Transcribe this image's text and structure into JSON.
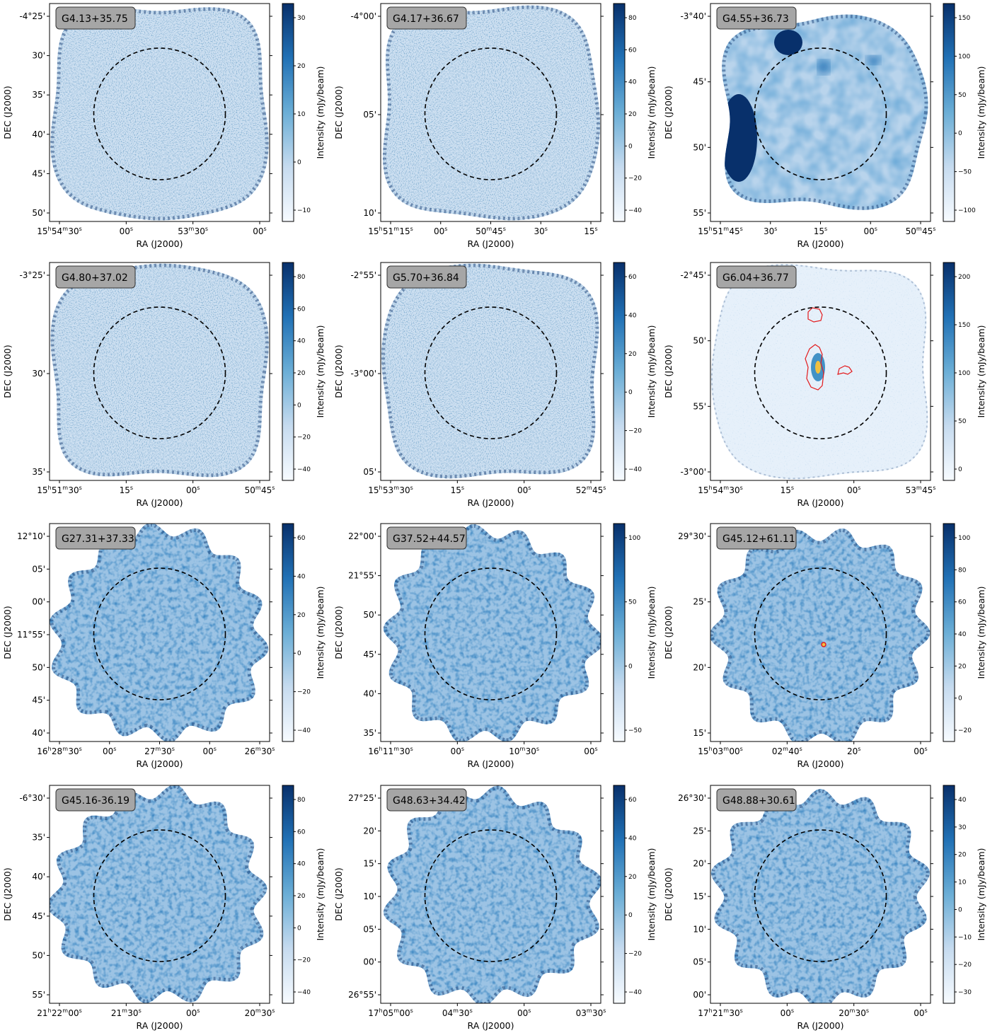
{
  "figure": {
    "panels": [
      {
        "name": "G4.13+35.75",
        "ra_ticks": [
          "15h54m30s",
          "00s",
          "53m30s",
          "00s"
        ],
        "dec_ticks": [
          "-4°25'",
          "30'",
          "35'",
          "40'",
          "45'",
          "50'"
        ],
        "cbar_ticks": [
          "30",
          "20",
          "10",
          "0",
          "−10"
        ],
        "has_contour": false,
        "style": "noise"
      },
      {
        "name": "G4.17+36.67",
        "ra_ticks": [
          "15h51m15s",
          "00s",
          "50m45s",
          "30s",
          "15s"
        ],
        "dec_ticks": [
          "-4°00'",
          "05'",
          "10'"
        ],
        "cbar_ticks": [
          "80",
          "60",
          "40",
          "20",
          "0",
          "−20",
          "−40"
        ],
        "has_contour": false,
        "style": "noise"
      },
      {
        "name": "G4.55+36.73",
        "ra_ticks": [
          "15h51m45s",
          "30s",
          "15s",
          "00s",
          "50m45s"
        ],
        "dec_ticks": [
          "-3°40'",
          "45'",
          "50'",
          "55'"
        ],
        "cbar_ticks": [
          "150",
          "100",
          "50",
          "0",
          "−50",
          "−100"
        ],
        "has_contour": false,
        "style": "smooth"
      },
      {
        "name": "G4.80+37.02",
        "ra_ticks": [
          "15h51m30s",
          "15s",
          "00s",
          "50m45s"
        ],
        "dec_ticks": [
          "-3°25'",
          "30'",
          "35'"
        ],
        "cbar_ticks": [
          "80",
          "60",
          "40",
          "20",
          "0",
          "−20",
          "−40"
        ],
        "has_contour": false,
        "style": "noise"
      },
      {
        "name": "G5.70+36.84",
        "ra_ticks": [
          "15h53m30s",
          "15s",
          "00s",
          "52m45s"
        ],
        "dec_ticks": [
          "-2°55'",
          "-3°00'",
          "05'"
        ],
        "cbar_ticks": [
          "60",
          "40",
          "20",
          "0",
          "−20",
          "−40"
        ],
        "has_contour": false,
        "style": "noise"
      },
      {
        "name": "G6.04+36.77",
        "ra_ticks": [
          "15h54m30s",
          "15s",
          "00s",
          "53m45s"
        ],
        "dec_ticks": [
          "-2°45'",
          "50'",
          "55'",
          "-3°00'"
        ],
        "cbar_ticks": [
          "200",
          "150",
          "100",
          "50",
          "0"
        ],
        "has_contour": true,
        "style": "faint"
      },
      {
        "name": "G27.31+37.33",
        "ra_ticks": [
          "16h28m30s",
          "00s",
          "27m30s",
          "00s",
          "26m30s"
        ],
        "dec_ticks": [
          "12°10'",
          "05'",
          "00'",
          "11°55'",
          "50'",
          "45'",
          "40'"
        ],
        "cbar_ticks": [
          "60",
          "40",
          "20",
          "0",
          "−20",
          "−40"
        ],
        "has_contour": false,
        "style": "mottled"
      },
      {
        "name": "G37.52+44.57",
        "ra_ticks": [
          "16h11m30s",
          "00s",
          "10m30s",
          "00s"
        ],
        "dec_ticks": [
          "22°00'",
          "21°55'",
          "50'",
          "45'",
          "40'",
          "35'"
        ],
        "cbar_ticks": [
          "100",
          "50",
          "0",
          "−50"
        ],
        "has_contour": false,
        "style": "mottled"
      },
      {
        "name": "G45.12+61.11",
        "ra_ticks": [
          "15h03m00s",
          "02m40s",
          "20s",
          "00s"
        ],
        "dec_ticks": [
          "29°30'",
          "25'",
          "20'",
          "15'"
        ],
        "cbar_ticks": [
          "100",
          "80",
          "60",
          "40",
          "20",
          "0",
          "−20"
        ],
        "has_contour": true,
        "style": "mottled"
      },
      {
        "name": "G45.16-36.19",
        "ra_ticks": [
          "21h22m00s",
          "21m30s",
          "00s",
          "20m30s"
        ],
        "dec_ticks": [
          "-6°30'",
          "35'",
          "40'",
          "45'",
          "50'",
          "55'"
        ],
        "cbar_ticks": [
          "80",
          "60",
          "40",
          "20",
          "0",
          "−20",
          "−40"
        ],
        "has_contour": false,
        "style": "mottled"
      },
      {
        "name": "G48.63+34.42",
        "ra_ticks": [
          "17h05m00s",
          "04m30s",
          "00s",
          "03m30s"
        ],
        "dec_ticks": [
          "27°25'",
          "20'",
          "15'",
          "10'",
          "05'",
          "00'",
          "26°55'"
        ],
        "cbar_ticks": [
          "60",
          "40",
          "20",
          "0",
          "−20",
          "−40"
        ],
        "has_contour": false,
        "style": "mottled"
      },
      {
        "name": "G48.88+30.61",
        "ra_ticks": [
          "17h21m30s",
          "00s",
          "20m30s",
          "00s"
        ],
        "dec_ticks": [
          "26°30'",
          "25'",
          "20'",
          "15'",
          "10'",
          "05'",
          "00'"
        ],
        "cbar_ticks": [
          "40",
          "30",
          "20",
          "10",
          "0",
          "−10",
          "−20",
          "−30"
        ],
        "has_contour": false,
        "style": "mottled"
      }
    ],
    "xlabel": "RA (J2000)",
    "ylabel": "DEC (J2000)",
    "cbar_label": "Intensity (mJy/beam)",
    "colors": {
      "cmap_low": "#f7fbff",
      "cmap_mid": "#6baed6",
      "cmap_high": "#08306b",
      "contour": "#e31a1c",
      "circle": "#000000",
      "label_box": "#a6a6a6"
    }
  }
}
